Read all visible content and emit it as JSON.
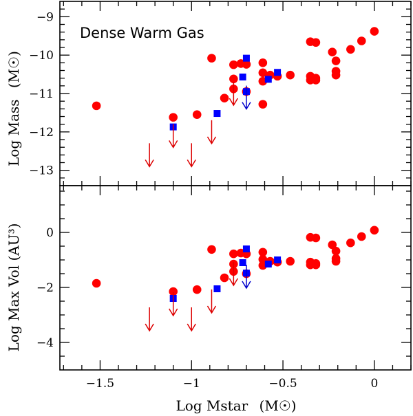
{
  "chart_data": [
    {
      "type": "scatter",
      "panel": "top",
      "annotation": "Dense Warm Gas",
      "ylabel_text": "Log Mass",
      "ylabel_unit": "(M☉)",
      "ylim": [
        -13.4,
        -8.6
      ],
      "xlim": [
        -1.72,
        0.2
      ],
      "yticks": [
        -13,
        -12,
        -11,
        -10,
        -9
      ],
      "ytick_labels": [
        "−13",
        "−12",
        "−11",
        "−10",
        "−9"
      ],
      "series": [
        {
          "name": "detections",
          "marker": "circle",
          "color": "#ff0000",
          "points": [
            [
              -1.52,
              -11.32
            ],
            [
              -1.1,
              -11.62
            ],
            [
              -0.97,
              -11.55
            ],
            [
              -0.89,
              -10.08
            ],
            [
              -0.82,
              -11.12
            ],
            [
              -0.77,
              -10.25
            ],
            [
              -0.77,
              -10.62
            ],
            [
              -0.77,
              -10.88
            ],
            [
              -0.73,
              -10.22
            ],
            [
              -0.7,
              -10.24
            ],
            [
              -0.7,
              -10.95
            ],
            [
              -0.61,
              -10.2
            ],
            [
              -0.61,
              -10.46
            ],
            [
              -0.61,
              -10.68
            ],
            [
              -0.61,
              -11.28
            ],
            [
              -0.57,
              -10.52
            ],
            [
              -0.53,
              -10.55
            ],
            [
              -0.46,
              -10.52
            ],
            [
              -0.35,
              -9.65
            ],
            [
              -0.35,
              -10.55
            ],
            [
              -0.35,
              -10.65
            ],
            [
              -0.32,
              -9.67
            ],
            [
              -0.32,
              -10.6
            ],
            [
              -0.32,
              -10.65
            ],
            [
              -0.23,
              -9.92
            ],
            [
              -0.21,
              -10.15
            ],
            [
              -0.21,
              -10.42
            ],
            [
              -0.21,
              -10.52
            ],
            [
              -0.13,
              -9.85
            ],
            [
              -0.07,
              -9.63
            ],
            [
              0.0,
              -9.38
            ]
          ]
        },
        {
          "name": "blue squares",
          "marker": "square",
          "color": "#0000ff",
          "points": [
            [
              -1.1,
              -11.87
            ],
            [
              -0.86,
              -11.52
            ],
            [
              -0.72,
              -10.57
            ],
            [
              -0.7,
              -10.08
            ],
            [
              -0.7,
              -10.95
            ],
            [
              -0.58,
              -10.63
            ],
            [
              -0.53,
              -10.45
            ]
          ]
        },
        {
          "name": "upper limits",
          "marker": "down-arrow",
          "color": "#dd0000",
          "points": [
            [
              -1.23,
              -12.6
            ],
            [
              -1.1,
              -12.1
            ],
            [
              -1.0,
              -12.6
            ],
            [
              -0.89,
              -12.0
            ],
            [
              -0.77,
              -11.0
            ]
          ]
        },
        {
          "name": "upper limits (blue)",
          "marker": "down-arrow",
          "color": "#0000cc",
          "points": [
            [
              -0.7,
              -11.1
            ]
          ]
        }
      ]
    },
    {
      "type": "scatter",
      "panel": "bottom",
      "xlabel_text": "Log Mstar",
      "xlabel_unit": "(M☉)",
      "ylabel_text": "Log Max Vol (AU³)",
      "ylim": [
        -5.0,
        1.7
      ],
      "xlim": [
        -1.72,
        0.2
      ],
      "xticks": [
        -1.5,
        -1.0,
        -0.5,
        0.0
      ],
      "xtick_labels": [
        "−1.5",
        "−1",
        "−0.5",
        "0"
      ],
      "yticks": [
        -4,
        -2,
        0
      ],
      "ytick_labels": [
        "−4",
        "−2",
        "0"
      ],
      "series": [
        {
          "name": "detections",
          "marker": "circle",
          "color": "#ff0000",
          "points": [
            [
              -1.52,
              -1.85
            ],
            [
              -1.1,
              -2.15
            ],
            [
              -0.97,
              -2.08
            ],
            [
              -0.89,
              -0.62
            ],
            [
              -0.82,
              -1.65
            ],
            [
              -0.77,
              -0.78
            ],
            [
              -0.77,
              -1.15
            ],
            [
              -0.77,
              -1.42
            ],
            [
              -0.73,
              -0.75
            ],
            [
              -0.7,
              -0.78
            ],
            [
              -0.7,
              -1.5
            ],
            [
              -0.61,
              -0.72
            ],
            [
              -0.61,
              -0.98
            ],
            [
              -0.61,
              -1.2
            ],
            [
              -0.57,
              -1.05
            ],
            [
              -0.53,
              -1.08
            ],
            [
              -0.46,
              -1.05
            ],
            [
              -0.35,
              -0.18
            ],
            [
              -0.35,
              -1.08
            ],
            [
              -0.35,
              -1.18
            ],
            [
              -0.32,
              -0.2
            ],
            [
              -0.32,
              -1.13
            ],
            [
              -0.32,
              -1.18
            ],
            [
              -0.23,
              -0.45
            ],
            [
              -0.21,
              -0.68
            ],
            [
              -0.21,
              -0.95
            ],
            [
              -0.21,
              -1.05
            ],
            [
              -0.13,
              -0.38
            ],
            [
              -0.07,
              -0.15
            ],
            [
              0.0,
              0.08
            ]
          ]
        },
        {
          "name": "blue squares",
          "marker": "square",
          "color": "#0000ff",
          "points": [
            [
              -1.1,
              -2.4
            ],
            [
              -0.86,
              -2.05
            ],
            [
              -0.72,
              -1.1
            ],
            [
              -0.7,
              -0.6
            ],
            [
              -0.7,
              -1.48
            ],
            [
              -0.58,
              -1.15
            ],
            [
              -0.53,
              -1.0
            ]
          ]
        },
        {
          "name": "upper limits",
          "marker": "down-arrow",
          "color": "#dd0000",
          "points": [
            [
              -1.23,
              -3.15
            ],
            [
              -1.1,
              -2.6
            ],
            [
              -1.0,
              -3.15
            ],
            [
              -0.89,
              -2.5
            ],
            [
              -0.77,
              -1.5
            ]
          ]
        },
        {
          "name": "upper limits (blue)",
          "marker": "down-arrow",
          "color": "#0000cc",
          "points": [
            [
              -0.7,
              -1.6
            ]
          ]
        }
      ]
    }
  ]
}
